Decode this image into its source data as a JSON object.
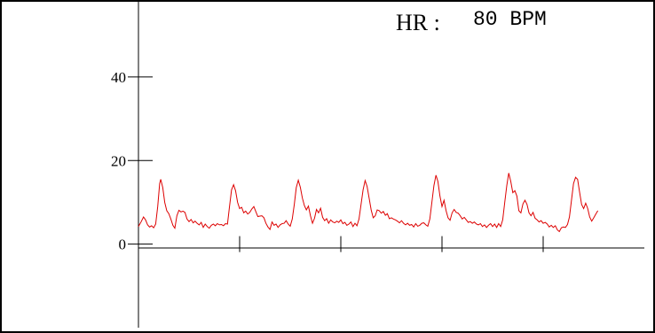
{
  "readout": {
    "label": "HR :",
    "value": "80 BPM"
  },
  "chart_data": {
    "type": "line",
    "title": "",
    "xlabel": "",
    "ylabel": "",
    "ylim": [
      -20,
      58
    ],
    "xlim": [
      0,
      500
    ],
    "y_ticks": [
      0,
      20,
      40
    ],
    "y_tick_labels": [
      "0",
      "20",
      "40"
    ],
    "x_ticks": [
      100,
      200,
      300,
      400
    ],
    "grid": false,
    "series_color": "#dd0000",
    "series": [
      {
        "values": [
          [
            0,
            4.2
          ],
          [
            3,
            5.5
          ],
          [
            5,
            6.5
          ],
          [
            7,
            5.8
          ],
          [
            9,
            4.6
          ],
          [
            11,
            4.1
          ],
          [
            13,
            4.4
          ],
          [
            15,
            3.9
          ],
          [
            17,
            4.8
          ],
          [
            19,
            9.0
          ],
          [
            21,
            14.5
          ],
          [
            22,
            15.5
          ],
          [
            24,
            13.5
          ],
          [
            26,
            10.0
          ],
          [
            28,
            8.0
          ],
          [
            30,
            7.3
          ],
          [
            32,
            6.0
          ],
          [
            34,
            4.5
          ],
          [
            36,
            3.8
          ],
          [
            38,
            6.8
          ],
          [
            40,
            8.1
          ],
          [
            42,
            7.7
          ],
          [
            44,
            7.9
          ],
          [
            46,
            7.6
          ],
          [
            48,
            6.0
          ],
          [
            50,
            5.4
          ],
          [
            52,
            5.9
          ],
          [
            54,
            5.1
          ],
          [
            56,
            5.5
          ],
          [
            58,
            5.0
          ],
          [
            60,
            4.6
          ],
          [
            62,
            5.2
          ],
          [
            64,
            4.0
          ],
          [
            66,
            4.8
          ],
          [
            68,
            4.2
          ],
          [
            70,
            3.8
          ],
          [
            72,
            4.5
          ],
          [
            74,
            4.8
          ],
          [
            76,
            4.4
          ],
          [
            78,
            4.9
          ],
          [
            80,
            4.6
          ],
          [
            82,
            4.7
          ],
          [
            84,
            4.4
          ],
          [
            86,
            4.9
          ],
          [
            88,
            4.8
          ],
          [
            90,
            9.0
          ],
          [
            92,
            13.0
          ],
          [
            94,
            14.2
          ],
          [
            96,
            12.8
          ],
          [
            98,
            10.0
          ],
          [
            100,
            8.5
          ],
          [
            102,
            8.8
          ],
          [
            104,
            7.5
          ],
          [
            106,
            7.9
          ],
          [
            108,
            7.2
          ],
          [
            110,
            7.6
          ],
          [
            112,
            8.4
          ],
          [
            114,
            9.0
          ],
          [
            116,
            7.8
          ],
          [
            118,
            6.6
          ],
          [
            120,
            6.7
          ],
          [
            122,
            6.8
          ],
          [
            124,
            6.3
          ],
          [
            126,
            5.0
          ],
          [
            128,
            4.1
          ],
          [
            130,
            3.5
          ],
          [
            132,
            5.3
          ],
          [
            134,
            4.5
          ],
          [
            136,
            4.8
          ],
          [
            138,
            4.0
          ],
          [
            140,
            4.6
          ],
          [
            142,
            4.9
          ],
          [
            144,
            5.0
          ],
          [
            146,
            5.6
          ],
          [
            148,
            4.8
          ],
          [
            150,
            4.3
          ],
          [
            152,
            6.0
          ],
          [
            154,
            9.5
          ],
          [
            156,
            13.5
          ],
          [
            158,
            15.3
          ],
          [
            160,
            13.6
          ],
          [
            162,
            11.0
          ],
          [
            164,
            9.2
          ],
          [
            166,
            8.2
          ],
          [
            168,
            9.1
          ],
          [
            170,
            6.8
          ],
          [
            172,
            5.0
          ],
          [
            174,
            6.2
          ],
          [
            176,
            8.3
          ],
          [
            178,
            7.5
          ],
          [
            180,
            8.6
          ],
          [
            182,
            6.4
          ],
          [
            184,
            5.6
          ],
          [
            186,
            6.1
          ],
          [
            188,
            5.0
          ],
          [
            190,
            5.8
          ],
          [
            192,
            5.3
          ],
          [
            194,
            5.1
          ],
          [
            196,
            5.5
          ],
          [
            198,
            5.2
          ],
          [
            200,
            5.8
          ],
          [
            202,
            4.9
          ],
          [
            204,
            5.2
          ],
          [
            206,
            4.5
          ],
          [
            208,
            4.8
          ],
          [
            210,
            5.3
          ],
          [
            212,
            4.2
          ],
          [
            214,
            5.0
          ],
          [
            216,
            4.4
          ],
          [
            218,
            6.0
          ],
          [
            220,
            9.5
          ],
          [
            222,
            13.0
          ],
          [
            224,
            15.2
          ],
          [
            226,
            13.8
          ],
          [
            228,
            11.0
          ],
          [
            230,
            8.2
          ],
          [
            232,
            6.3
          ],
          [
            234,
            6.8
          ],
          [
            236,
            8.2
          ],
          [
            238,
            8.0
          ],
          [
            240,
            7.4
          ],
          [
            242,
            7.8
          ],
          [
            244,
            6.9
          ],
          [
            246,
            7.3
          ],
          [
            248,
            6.1
          ],
          [
            250,
            6.3
          ],
          [
            252,
            6.0
          ],
          [
            254,
            5.8
          ],
          [
            256,
            5.5
          ],
          [
            258,
            5.1
          ],
          [
            260,
            5.6
          ],
          [
            262,
            5.0
          ],
          [
            264,
            4.6
          ],
          [
            266,
            5.0
          ],
          [
            268,
            4.5
          ],
          [
            270,
            4.7
          ],
          [
            272,
            4.1
          ],
          [
            274,
            4.9
          ],
          [
            276,
            4.3
          ],
          [
            278,
            4.5
          ],
          [
            280,
            5.0
          ],
          [
            282,
            5.1
          ],
          [
            284,
            4.6
          ],
          [
            286,
            4.3
          ],
          [
            288,
            6.0
          ],
          [
            290,
            10.0
          ],
          [
            292,
            14.0
          ],
          [
            294,
            16.5
          ],
          [
            296,
            15.0
          ],
          [
            298,
            11.5
          ],
          [
            300,
            9.0
          ],
          [
            302,
            10.5
          ],
          [
            304,
            8.0
          ],
          [
            306,
            6.3
          ],
          [
            308,
            5.7
          ],
          [
            310,
            7.5
          ],
          [
            312,
            8.3
          ],
          [
            314,
            7.6
          ],
          [
            316,
            7.4
          ],
          [
            318,
            6.8
          ],
          [
            320,
            6.0
          ],
          [
            322,
            6.4
          ],
          [
            324,
            5.8
          ],
          [
            326,
            5.2
          ],
          [
            328,
            5.4
          ],
          [
            330,
            5.0
          ],
          [
            332,
            5.3
          ],
          [
            334,
            4.8
          ],
          [
            336,
            4.6
          ],
          [
            338,
            4.9
          ],
          [
            340,
            4.2
          ],
          [
            342,
            4.6
          ],
          [
            344,
            4.0
          ],
          [
            346,
            4.5
          ],
          [
            348,
            4.9
          ],
          [
            350,
            4.2
          ],
          [
            352,
            4.8
          ],
          [
            354,
            4.0
          ],
          [
            356,
            4.9
          ],
          [
            358,
            4.2
          ],
          [
            360,
            5.8
          ],
          [
            362,
            10.0
          ],
          [
            364,
            14.0
          ],
          [
            366,
            17.0
          ],
          [
            368,
            15.0
          ],
          [
            370,
            12.3
          ],
          [
            372,
            12.8
          ],
          [
            374,
            11.5
          ],
          [
            376,
            8.0
          ],
          [
            378,
            7.5
          ],
          [
            380,
            9.6
          ],
          [
            382,
            10.5
          ],
          [
            384,
            9.5
          ],
          [
            386,
            7.5
          ],
          [
            388,
            6.8
          ],
          [
            390,
            7.6
          ],
          [
            392,
            6.2
          ],
          [
            394,
            5.8
          ],
          [
            396,
            5.3
          ],
          [
            398,
            5.6
          ],
          [
            400,
            5.0
          ],
          [
            402,
            5.2
          ],
          [
            404,
            4.8
          ],
          [
            406,
            4.1
          ],
          [
            408,
            4.5
          ],
          [
            410,
            4.0
          ],
          [
            412,
            4.4
          ],
          [
            414,
            3.4
          ],
          [
            416,
            3.0
          ],
          [
            418,
            3.9
          ],
          [
            420,
            4.1
          ],
          [
            422,
            4.0
          ],
          [
            424,
            4.7
          ],
          [
            426,
            6.5
          ],
          [
            428,
            10.5
          ],
          [
            430,
            14.5
          ],
          [
            432,
            16.0
          ],
          [
            434,
            15.5
          ],
          [
            436,
            12.5
          ],
          [
            438,
            9.5
          ],
          [
            440,
            8.5
          ],
          [
            442,
            9.8
          ],
          [
            444,
            8.5
          ],
          [
            446,
            6.5
          ],
          [
            448,
            5.5
          ],
          [
            450,
            6.3
          ],
          [
            452,
            7.2
          ],
          [
            454,
            8.0
          ]
        ]
      }
    ]
  }
}
